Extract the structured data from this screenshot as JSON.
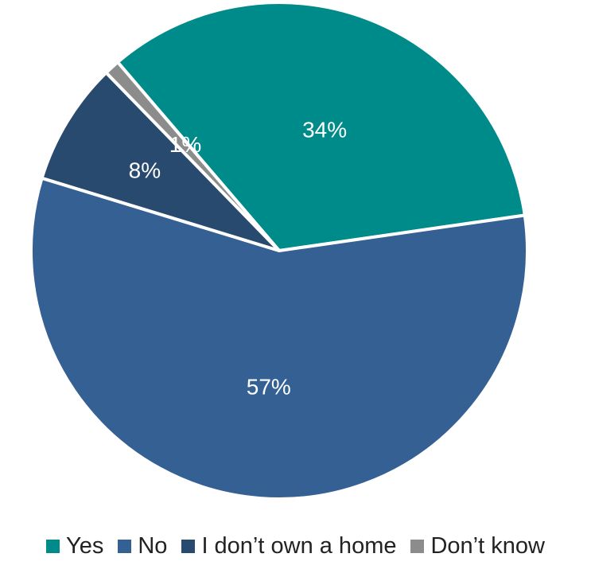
{
  "chart_data": {
    "type": "pie",
    "title": "",
    "slices": [
      {
        "label": "Yes",
        "value": 34,
        "display": "34%",
        "color": "#008B8B"
      },
      {
        "label": "No",
        "value": 57,
        "display": "57%",
        "color": "#346094"
      },
      {
        "label": "I don’t own a home",
        "value": 8,
        "display": "8%",
        "color": "#284A6E"
      },
      {
        "label": "Don’t know",
        "value": 1,
        "display": "1%",
        "color": "#8C8C8C"
      }
    ],
    "legend_position": "bottom"
  }
}
